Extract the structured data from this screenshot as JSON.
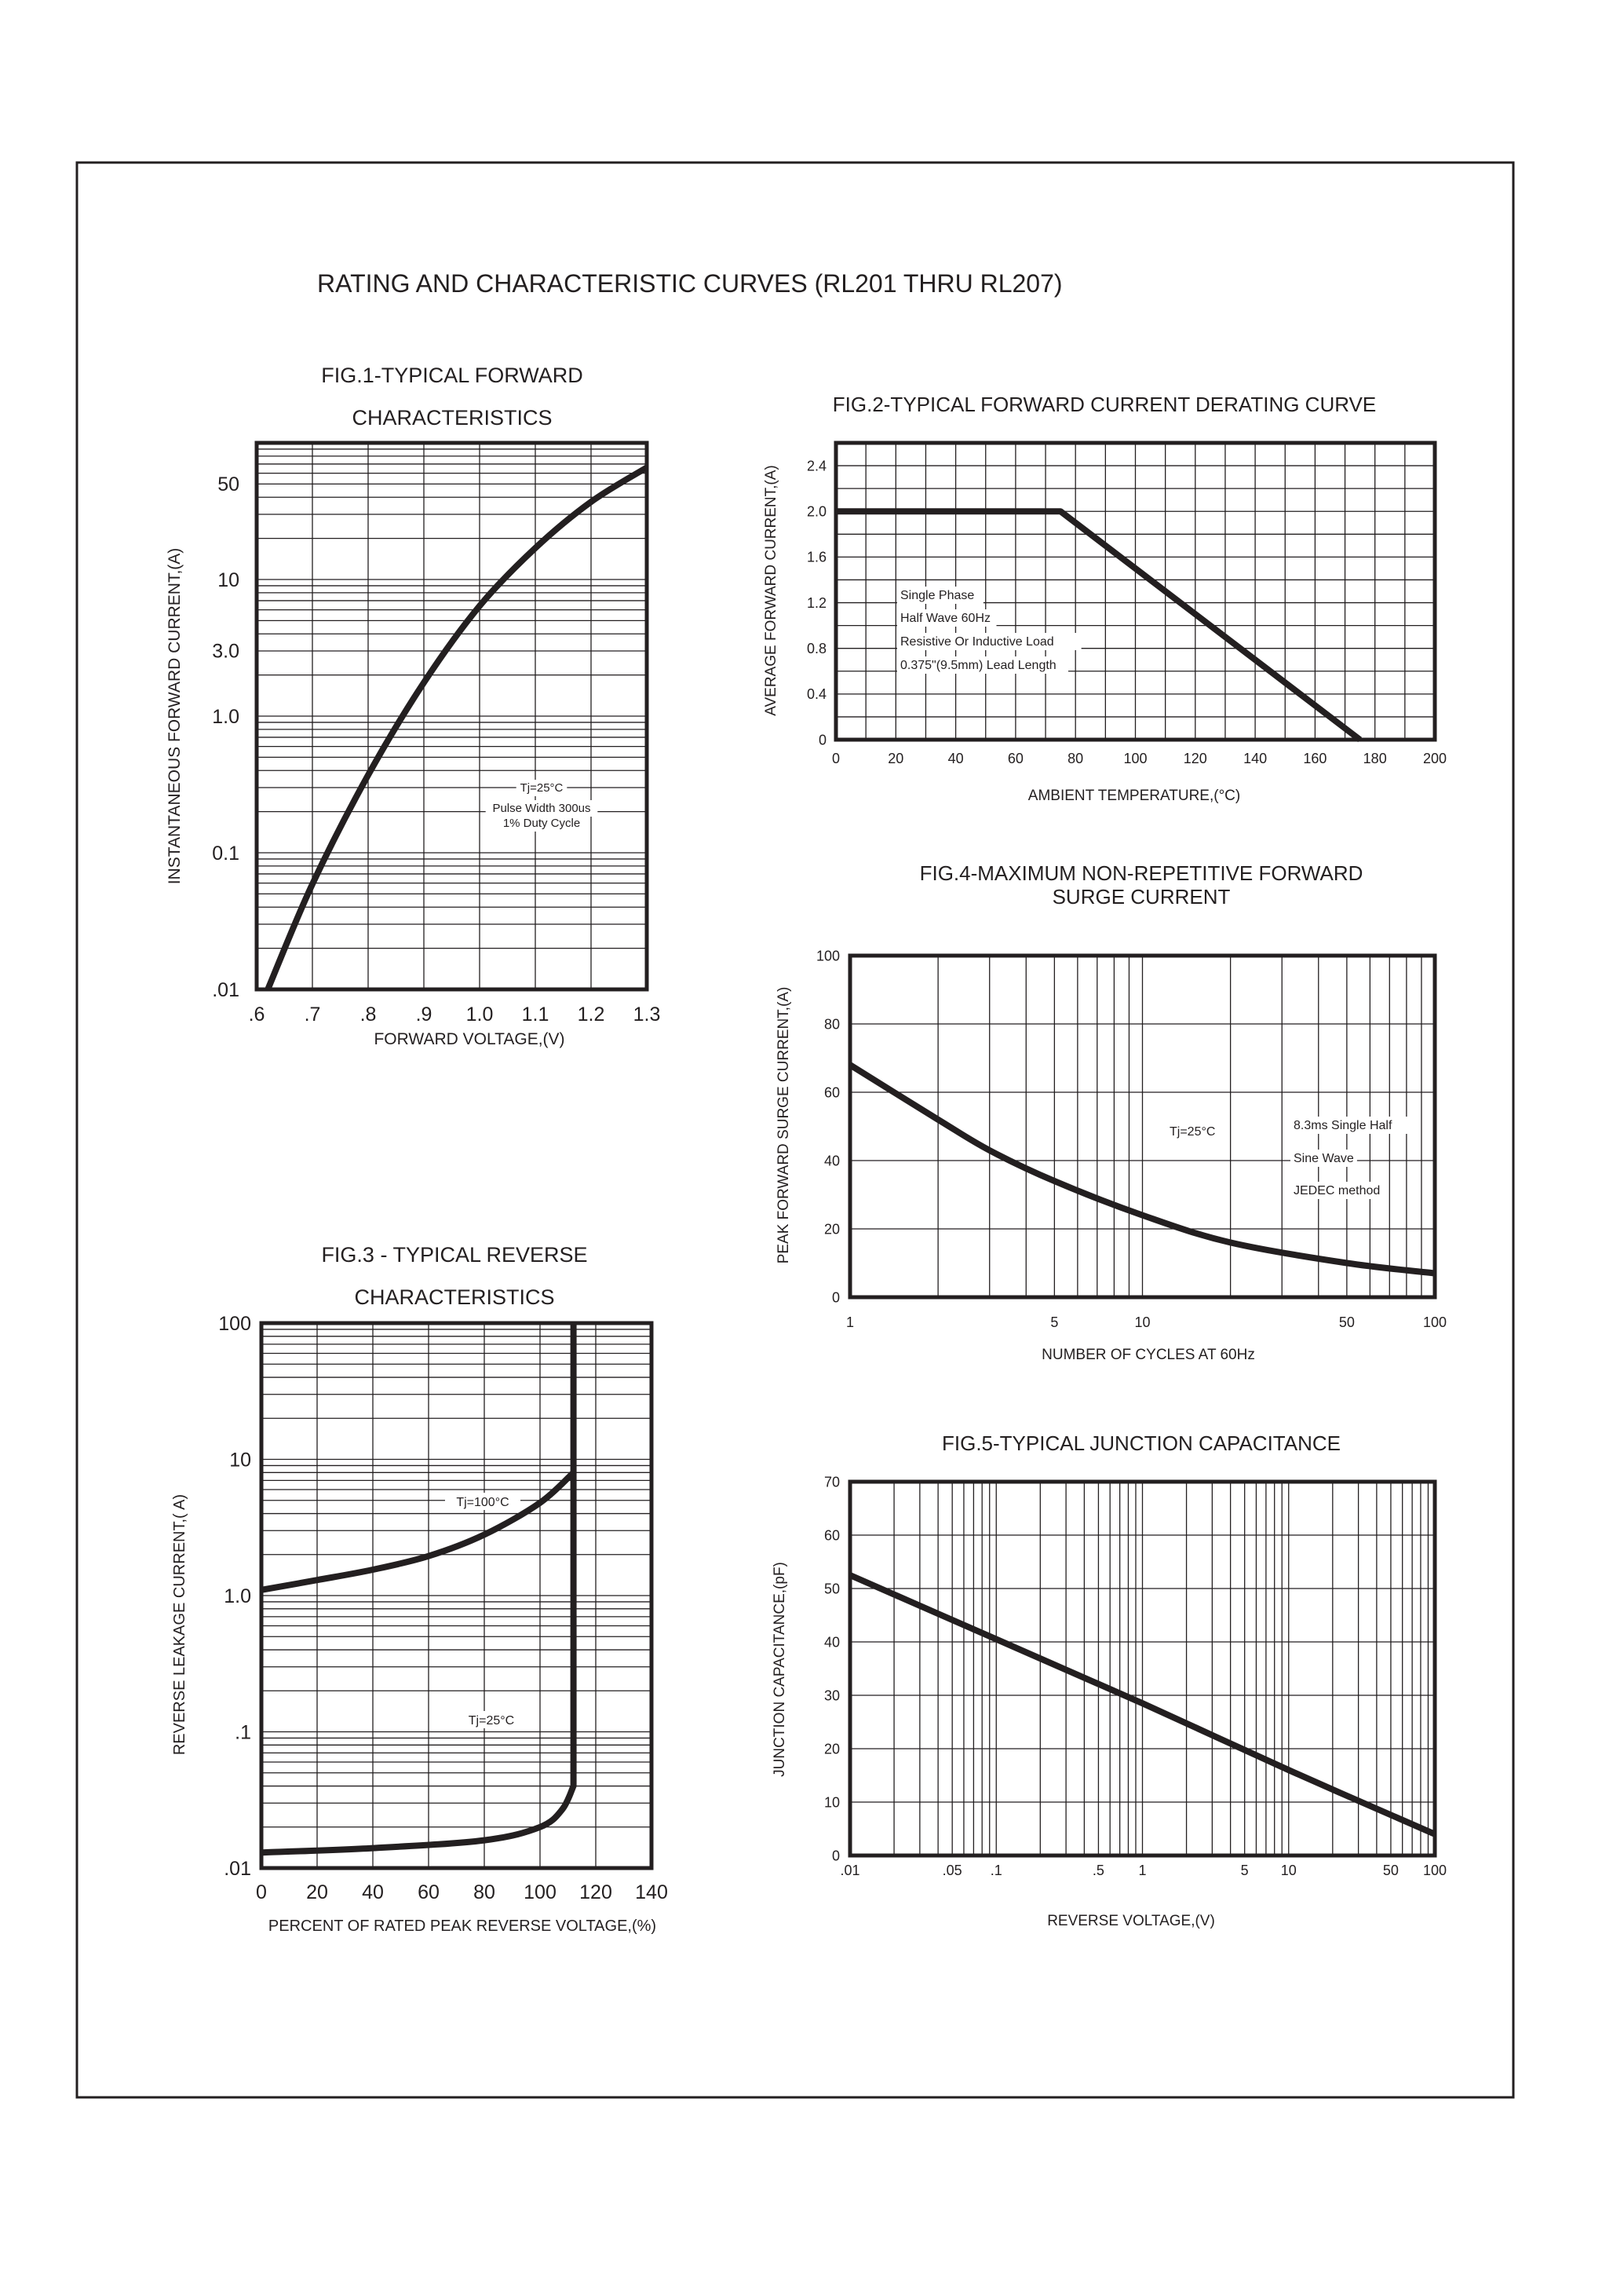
{
  "document": {
    "title": "RATING AND CHARACTERISTIC CURVES (RL201 THRU RL207)",
    "ink_color": "#231f20",
    "background": "#ffffff"
  },
  "chart_data": [
    {
      "type": "line",
      "title": [
        "FIG.1-TYPICAL FORWARD",
        "CHARACTERISTICS"
      ],
      "xlabel": "FORWARD VOLTAGE,(V)",
      "ylabel": "INSTANTANEOUS FORWARD CURRENT,(A)",
      "xscale": "linear",
      "yscale": "log",
      "xlim": [
        0.6,
        1.3
      ],
      "ylim": [
        0.01,
        100
      ],
      "x_grid_step": 0.1,
      "grid": true,
      "xticks": [
        {
          "value": 0.6,
          "label": ".6"
        },
        {
          "value": 0.7,
          "label": ".7"
        },
        {
          "value": 0.8,
          "label": ".8"
        },
        {
          "value": 0.9,
          "label": ".9"
        },
        {
          "value": 1.0,
          "label": "1.0"
        },
        {
          "value": 1.1,
          "label": "1.1"
        },
        {
          "value": 1.2,
          "label": "1.2"
        },
        {
          "value": 1.3,
          "label": "1.3"
        }
      ],
      "yticks": [
        {
          "value": 0.01,
          "label": ".01"
        },
        {
          "value": 0.1,
          "label": "0.1"
        },
        {
          "value": 1,
          "label": "1.0"
        },
        {
          "value": 3,
          "label": "3.0"
        },
        {
          "value": 10,
          "label": "10"
        },
        {
          "value": 50,
          "label": "50"
        }
      ],
      "series": [
        {
          "x": [
            0.62,
            0.7,
            0.8,
            0.9,
            1.0,
            1.1,
            1.2,
            1.3
          ],
          "y": [
            0.01,
            0.059,
            0.37,
            1.76,
            6.4,
            17,
            37,
            66
          ]
        }
      ],
      "annotations": [
        "Tj=25°C",
        "Pulse Width 300us",
        "1% Duty Cycle"
      ]
    },
    {
      "type": "line",
      "title": [
        "FIG.2-TYPICAL FORWARD CURRENT DERATING CURVE"
      ],
      "xlabel": "AMBIENT TEMPERATURE,(°C)",
      "ylabel": "AVERAGE FORWARD CURRENT,(A)",
      "xscale": "linear",
      "yscale": "linear",
      "xlim": [
        0,
        200
      ],
      "ylim": [
        0,
        2.6
      ],
      "x_grid_step": 10,
      "y_grid_step": 0.2,
      "grid": true,
      "xticks": [
        {
          "value": 0,
          "label": "0"
        },
        {
          "value": 20,
          "label": "20"
        },
        {
          "value": 40,
          "label": "40"
        },
        {
          "value": 60,
          "label": "60"
        },
        {
          "value": 80,
          "label": "80"
        },
        {
          "value": 100,
          "label": "100"
        },
        {
          "value": 120,
          "label": "120"
        },
        {
          "value": 140,
          "label": "140"
        },
        {
          "value": 160,
          "label": "160"
        },
        {
          "value": 180,
          "label": "180"
        },
        {
          "value": 200,
          "label": "200"
        }
      ],
      "yticks": [
        {
          "value": 0,
          "label": "0"
        },
        {
          "value": 0.4,
          "label": "0.4"
        },
        {
          "value": 0.8,
          "label": "0.8"
        },
        {
          "value": 1.2,
          "label": "1.2"
        },
        {
          "value": 1.6,
          "label": "1.6"
        },
        {
          "value": 2.0,
          "label": "2.0"
        },
        {
          "value": 2.4,
          "label": "2.4"
        }
      ],
      "series": [
        {
          "x": [
            0,
            75,
            175
          ],
          "y": [
            2.0,
            2.0,
            0
          ]
        }
      ],
      "annotations": [
        "Single Phase",
        "Half Wave 60Hz",
        "Resistive Or Inductive Load",
        "0.375\"(9.5mm) Lead Length"
      ]
    },
    {
      "type": "line",
      "title": [
        "FIG.3 - TYPICAL REVERSE",
        "CHARACTERISTICS"
      ],
      "xlabel": "PERCENT OF RATED PEAK REVERSE VOLTAGE,(%)",
      "ylabel": "REVERSE LEAKAGE CURRENT,(  A)",
      "xscale": "linear",
      "yscale": "log",
      "xlim": [
        0,
        140
      ],
      "ylim": [
        0.01,
        100
      ],
      "x_grid_step": 20,
      "grid": true,
      "xticks": [
        {
          "value": 0,
          "label": "0"
        },
        {
          "value": 20,
          "label": "20"
        },
        {
          "value": 40,
          "label": "40"
        },
        {
          "value": 60,
          "label": "60"
        },
        {
          "value": 80,
          "label": "80"
        },
        {
          "value": 100,
          "label": "100"
        },
        {
          "value": 120,
          "label": "120"
        },
        {
          "value": 140,
          "label": "140"
        }
      ],
      "yticks": [
        {
          "value": 0.01,
          "label": ".01"
        },
        {
          "value": 0.1,
          "label": ".1"
        },
        {
          "value": 1,
          "label": "1.0"
        },
        {
          "value": 10,
          "label": "10"
        },
        {
          "value": 100,
          "label": "100"
        }
      ],
      "series": [
        {
          "name": "Tj=100°C",
          "x": [
            0,
            20,
            40,
            60,
            80,
            100,
            112
          ],
          "y": [
            1.1,
            1.3,
            1.55,
            1.95,
            2.8,
            4.8,
            8
          ]
        },
        {
          "name": "Tj=25°C",
          "x": [
            0,
            40,
            80,
            100,
            108,
            112,
            112,
            112
          ],
          "y": [
            0.013,
            0.014,
            0.016,
            0.02,
            0.027,
            0.04,
            1,
            100
          ]
        }
      ],
      "annotations": []
    },
    {
      "type": "line",
      "title": [
        "FIG.4-MAXIMUM NON-REPETITIVE FORWARD",
        "SURGE CURRENT"
      ],
      "xlabel": "NUMBER OF CYCLES AT 60Hz",
      "ylabel": "PEAK FORWARD SURGE CURRENT,(A)",
      "xscale": "log",
      "yscale": "linear",
      "xlim": [
        1,
        100
      ],
      "ylim": [
        0,
        100
      ],
      "y_grid_step": 20,
      "grid": true,
      "xticks": [
        {
          "value": 1,
          "label": "1"
        },
        {
          "value": 5,
          "label": "5"
        },
        {
          "value": 10,
          "label": "10"
        },
        {
          "value": 50,
          "label": "50"
        },
        {
          "value": 100,
          "label": "100"
        }
      ],
      "yticks": [
        {
          "value": 0,
          "label": "0"
        },
        {
          "value": 20,
          "label": "20"
        },
        {
          "value": 40,
          "label": "40"
        },
        {
          "value": 60,
          "label": "60"
        },
        {
          "value": 80,
          "label": "80"
        },
        {
          "value": 100,
          "label": "100"
        }
      ],
      "series": [
        {
          "x": [
            1,
            2,
            3,
            5,
            10,
            20,
            50,
            100
          ],
          "y": [
            68,
            52,
            43,
            34,
            24,
            16,
            10,
            7
          ]
        }
      ],
      "annotations": [
        "Tj=25°C",
        "8.3ms Single Half",
        "Sine Wave",
        "JEDEC method"
      ]
    },
    {
      "type": "line",
      "title": [
        "FIG.5-TYPICAL JUNCTION CAPACITANCE"
      ],
      "xlabel": "REVERSE VOLTAGE,(V)",
      "ylabel": "JUNCTION CAPACITANCE,(pF)",
      "xscale": "log",
      "yscale": "linear",
      "xlim": [
        0.01,
        100
      ],
      "ylim": [
        0,
        70
      ],
      "y_grid_step": 10,
      "grid": true,
      "xticks": [
        {
          "value": 0.01,
          "label": ".01"
        },
        {
          "value": 0.05,
          "label": ".05"
        },
        {
          "value": 0.1,
          "label": ".1"
        },
        {
          "value": 0.5,
          "label": ".5"
        },
        {
          "value": 1,
          "label": "1"
        },
        {
          "value": 5,
          "label": "5"
        },
        {
          "value": 10,
          "label": "10"
        },
        {
          "value": 50,
          "label": "50"
        },
        {
          "value": 100,
          "label": "100"
        }
      ],
      "yticks": [
        {
          "value": 0,
          "label": "0"
        },
        {
          "value": 10,
          "label": "10"
        },
        {
          "value": 20,
          "label": "20"
        },
        {
          "value": 30,
          "label": "30"
        },
        {
          "value": 40,
          "label": "40"
        },
        {
          "value": 50,
          "label": "50"
        },
        {
          "value": 60,
          "label": "60"
        },
        {
          "value": 70,
          "label": "70"
        }
      ],
      "series": [
        {
          "x": [
            0.01,
            0.1,
            1,
            10,
            100
          ],
          "y": [
            52.5,
            40.5,
            28.5,
            16,
            4
          ]
        }
      ],
      "annotations": []
    }
  ]
}
